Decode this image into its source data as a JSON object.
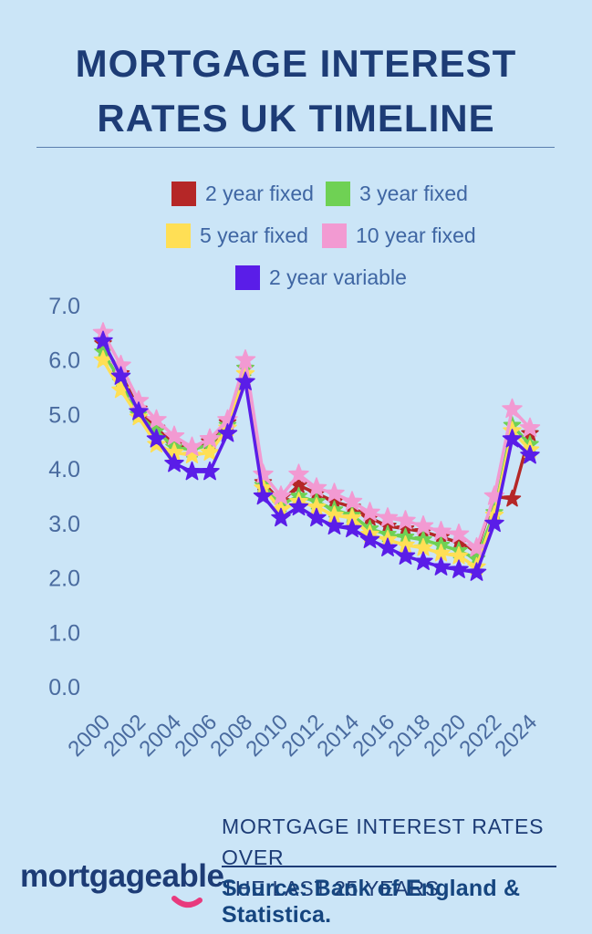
{
  "page": {
    "title_line1": "MORTGAGE INTEREST",
    "title_line2": "RATES UK TIMELINE",
    "background_color": "#cbe5f7",
    "title_color": "#1d3c76"
  },
  "chart_data": {
    "type": "line",
    "title": "Mortgage interest rates UK timeline",
    "xlabel": "",
    "ylabel": "",
    "ylim": [
      0.0,
      7.0
    ],
    "y_ticks": [
      7.0,
      6.0,
      5.0,
      4.0,
      3.0,
      2.0,
      1.0,
      0.0
    ],
    "x_ticks": [
      2000,
      2002,
      2004,
      2006,
      2008,
      2010,
      2012,
      2014,
      2016,
      2018,
      2020,
      2022,
      2024
    ],
    "x": [
      2000,
      2001,
      2002,
      2003,
      2004,
      2005,
      2006,
      2007,
      2008,
      2009,
      2010,
      2011,
      2012,
      2013,
      2014,
      2015,
      2016,
      2017,
      2018,
      2019,
      2020,
      2021,
      2022,
      2023,
      2024
    ],
    "marker": "star",
    "grid": false,
    "legend_position": "top",
    "axis_text_color": "#4a6b9f",
    "series": [
      {
        "name": "2 year fixed",
        "color": "#b52727",
        "marker_radius": 9.5,
        "values": [
          6.3,
          5.75,
          5.1,
          4.75,
          4.45,
          4.4,
          4.5,
          4.85,
          5.85,
          3.75,
          3.4,
          3.7,
          3.55,
          3.4,
          3.3,
          3.1,
          2.95,
          2.9,
          2.85,
          2.75,
          2.65,
          2.5,
          3.5,
          3.45,
          4.65
        ]
      },
      {
        "name": "3 year fixed",
        "color": "#6fd154",
        "marker_radius": 9.5,
        "values": [
          6.15,
          5.6,
          5.0,
          4.7,
          4.4,
          4.35,
          4.45,
          4.8,
          5.85,
          3.7,
          3.35,
          3.5,
          3.4,
          3.25,
          3.15,
          2.9,
          2.8,
          2.75,
          2.7,
          2.6,
          2.5,
          2.35,
          3.2,
          4.8,
          4.45
        ]
      },
      {
        "name": "5 year fixed",
        "color": "#ffdf55",
        "marker_radius": 10,
        "values": [
          6.0,
          5.45,
          4.95,
          4.45,
          4.3,
          4.25,
          4.3,
          4.75,
          5.75,
          3.65,
          3.25,
          3.4,
          3.3,
          3.15,
          3.1,
          2.8,
          2.7,
          2.6,
          2.55,
          2.45,
          2.4,
          2.2,
          3.15,
          4.7,
          4.35
        ]
      },
      {
        "name": "10 year fixed",
        "color": "#f29ad2",
        "marker_radius": 11,
        "values": [
          6.5,
          5.9,
          5.25,
          4.9,
          4.6,
          4.4,
          4.55,
          4.9,
          6.0,
          3.9,
          3.5,
          3.9,
          3.65,
          3.55,
          3.4,
          3.2,
          3.1,
          3.05,
          2.95,
          2.85,
          2.8,
          2.55,
          3.5,
          5.1,
          4.75
        ]
      },
      {
        "name": "2 year variable",
        "color": "#5a1de8",
        "marker_radius": 10.5,
        "values": [
          6.35,
          5.7,
          5.05,
          4.55,
          4.1,
          3.95,
          3.95,
          4.65,
          5.6,
          3.5,
          3.1,
          3.3,
          3.1,
          2.95,
          2.9,
          2.7,
          2.55,
          2.4,
          2.3,
          2.2,
          2.15,
          2.1,
          3.0,
          4.55,
          4.25
        ]
      }
    ]
  },
  "footer": {
    "logo_text": "mortgageable",
    "smile_color": "#e83a7d",
    "caption_line1": "MORTGAGE INTEREST RATES OVER",
    "caption_line2": "THE LAST 25 YEARS.",
    "source": "Source: Bank of England & Statistica."
  }
}
